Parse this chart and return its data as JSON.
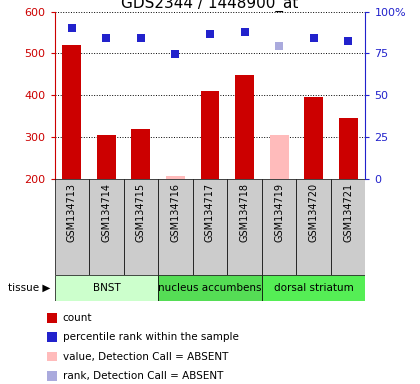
{
  "title": "GDS2344 / 1448900_at",
  "samples": [
    "GSM134713",
    "GSM134714",
    "GSM134715",
    "GSM134716",
    "GSM134717",
    "GSM134718",
    "GSM134719",
    "GSM134720",
    "GSM134721"
  ],
  "count_values": [
    520,
    305,
    318,
    null,
    410,
    448,
    null,
    395,
    345
  ],
  "count_absent": [
    null,
    null,
    null,
    205,
    null,
    null,
    305,
    null,
    null
  ],
  "rank_values": [
    560,
    537,
    537,
    498,
    545,
    552,
    null,
    537,
    530
  ],
  "rank_absent": [
    null,
    null,
    null,
    null,
    null,
    null,
    518,
    null,
    null
  ],
  "ylim_left": [
    200,
    600
  ],
  "ylim_right": [
    0,
    100
  ],
  "yticks_left": [
    200,
    300,
    400,
    500,
    600
  ],
  "yticks_right": [
    0,
    25,
    50,
    75,
    100
  ],
  "yticklabels_right": [
    "0",
    "25",
    "50",
    "75",
    "100%"
  ],
  "bar_color_present": "#cc0000",
  "bar_color_absent": "#ffbbbb",
  "dot_color_present": "#2222cc",
  "dot_color_absent": "#aaaadd",
  "tissue_groups": [
    {
      "label": "BNST",
      "start": 0,
      "end": 3,
      "color": "#ccffcc"
    },
    {
      "label": "nucleus accumbens",
      "start": 3,
      "end": 6,
      "color": "#55dd55"
    },
    {
      "label": "dorsal striatum",
      "start": 6,
      "end": 9,
      "color": "#55ee55"
    }
  ],
  "legend_items": [
    {
      "color": "#cc0000",
      "label": "count"
    },
    {
      "color": "#2222cc",
      "label": "percentile rank within the sample"
    },
    {
      "color": "#ffbbbb",
      "label": "value, Detection Call = ABSENT"
    },
    {
      "color": "#aaaadd",
      "label": "rank, Detection Call = ABSENT"
    }
  ],
  "bar_width": 0.55,
  "dot_size": 35,
  "background_color": "#ffffff",
  "sample_bg": "#cccccc",
  "axis_color_left": "#cc0000",
  "axis_color_right": "#2222cc",
  "title_fontsize": 11,
  "tick_fontsize": 8
}
